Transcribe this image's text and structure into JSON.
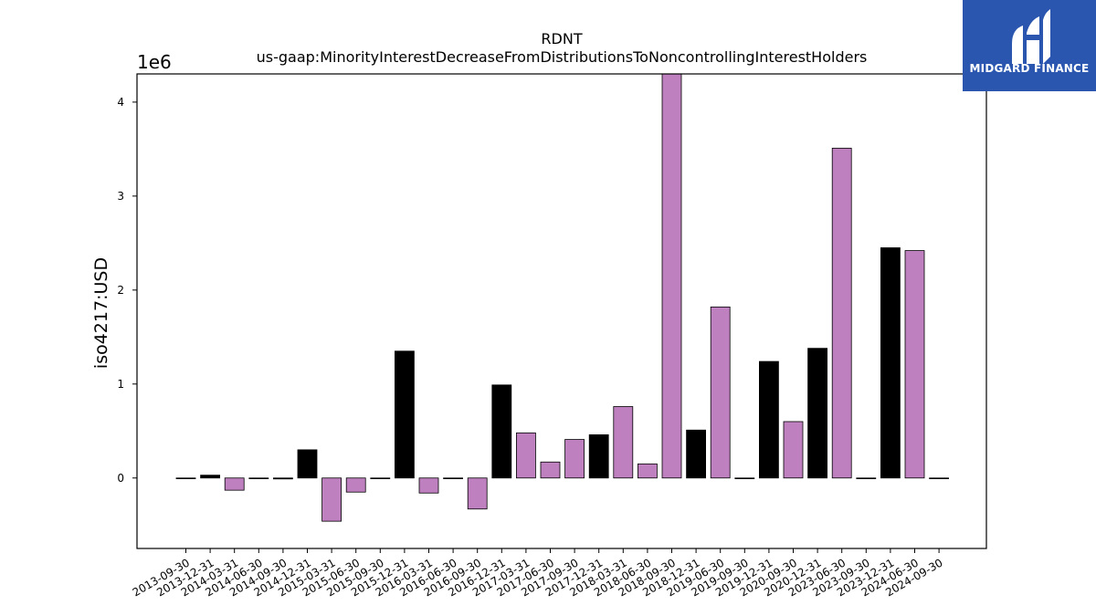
{
  "chart_data": {
    "type": "bar",
    "title": "RDNT",
    "subtitle": "us-gaap:MinorityInterestDecreaseFromDistributionsToNoncontrollingInterestHolders",
    "xlabel": "",
    "ylabel": "iso4217:USD",
    "y_scale_label": "1e6",
    "y_tick_values": [
      0,
      1,
      2,
      3,
      4
    ],
    "ylim": [
      -0.75,
      4.3
    ],
    "grid": false,
    "legend": "none",
    "categories": [
      "2013-09-30",
      "2013-12-31",
      "2014-03-31",
      "2014-06-30",
      "2014-09-30",
      "2014-12-31",
      "2015-03-31",
      "2015-06-30",
      "2015-09-30",
      "2015-12-31",
      "2016-03-31",
      "2016-06-30",
      "2016-09-30",
      "2016-12-31",
      "2017-03-31",
      "2017-06-30",
      "2017-09-30",
      "2017-12-31",
      "2018-03-31",
      "2018-06-30",
      "2018-09-30",
      "2018-12-31",
      "2019-06-30",
      "2019-09-30",
      "2019-12-31",
      "2020-09-30",
      "2020-12-31",
      "2023-06-30",
      "2023-09-30",
      "2023-12-31",
      "2024-06-30",
      "2024-09-30"
    ],
    "values": [
      0.0,
      0.03,
      -0.13,
      0.0,
      -0.01,
      0.3,
      -0.46,
      -0.15,
      0.0,
      1.35,
      -0.16,
      0.0,
      -0.33,
      0.99,
      0.48,
      0.17,
      0.41,
      0.46,
      0.76,
      0.15,
      4.3,
      0.51,
      1.82,
      0.0,
      1.24,
      0.6,
      1.38,
      3.51,
      0.0,
      2.45,
      2.42,
      0.0
    ],
    "bar_colors": [
      "#000000",
      "#000000",
      "#bf80bf",
      "#000000",
      "#000000",
      "#000000",
      "#bf80bf",
      "#bf80bf",
      "#000000",
      "#000000",
      "#bf80bf",
      "#000000",
      "#bf80bf",
      "#000000",
      "#bf80bf",
      "#bf80bf",
      "#bf80bf",
      "#000000",
      "#bf80bf",
      "#bf80bf",
      "#bf80bf",
      "#000000",
      "#bf80bf",
      "#000000",
      "#000000",
      "#bf80bf",
      "#000000",
      "#bf80bf",
      "#000000",
      "#000000",
      "#bf80bf",
      "#000000"
    ]
  },
  "logo": {
    "text": "MIDGARD FINANCE",
    "background": "#2a56b0"
  }
}
